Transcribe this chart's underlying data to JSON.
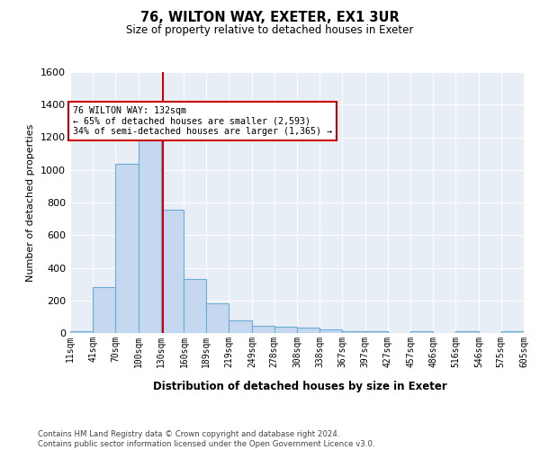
{
  "title1": "76, WILTON WAY, EXETER, EX1 3UR",
  "title2": "Size of property relative to detached houses in Exeter",
  "xlabel": "Distribution of detached houses by size in Exeter",
  "ylabel": "Number of detached properties",
  "bar_color": "#c5d8ef",
  "bar_edge_color": "#6aaed6",
  "background_color": "#e8eef6",
  "grid_color": "#ffffff",
  "vline_color": "#cc0000",
  "vline_x": 132,
  "bin_edges": [
    11,
    41,
    70,
    100,
    130,
    160,
    189,
    219,
    249,
    278,
    308,
    338,
    367,
    397,
    427,
    457,
    486,
    516,
    546,
    575,
    605
  ],
  "bar_heights": [
    10,
    280,
    1035,
    1240,
    755,
    330,
    180,
    80,
    45,
    38,
    32,
    20,
    12,
    10,
    0,
    13,
    0,
    10,
    0,
    12
  ],
  "ylim": [
    0,
    1600
  ],
  "yticks": [
    0,
    200,
    400,
    600,
    800,
    1000,
    1200,
    1400,
    1600
  ],
  "annotation_text": "76 WILTON WAY: 132sqm\n← 65% of detached houses are smaller (2,593)\n34% of semi-detached houses are larger (1,365) →",
  "annotation_box_color": "#ffffff",
  "annotation_border_color": "#cc0000",
  "footer_text": "Contains HM Land Registry data © Crown copyright and database right 2024.\nContains public sector information licensed under the Open Government Licence v3.0.",
  "tick_labels": [
    "11sqm",
    "41sqm",
    "70sqm",
    "100sqm",
    "130sqm",
    "160sqm",
    "189sqm",
    "219sqm",
    "249sqm",
    "278sqm",
    "308sqm",
    "338sqm",
    "367sqm",
    "397sqm",
    "427sqm",
    "457sqm",
    "486sqm",
    "516sqm",
    "546sqm",
    "575sqm",
    "605sqm"
  ]
}
